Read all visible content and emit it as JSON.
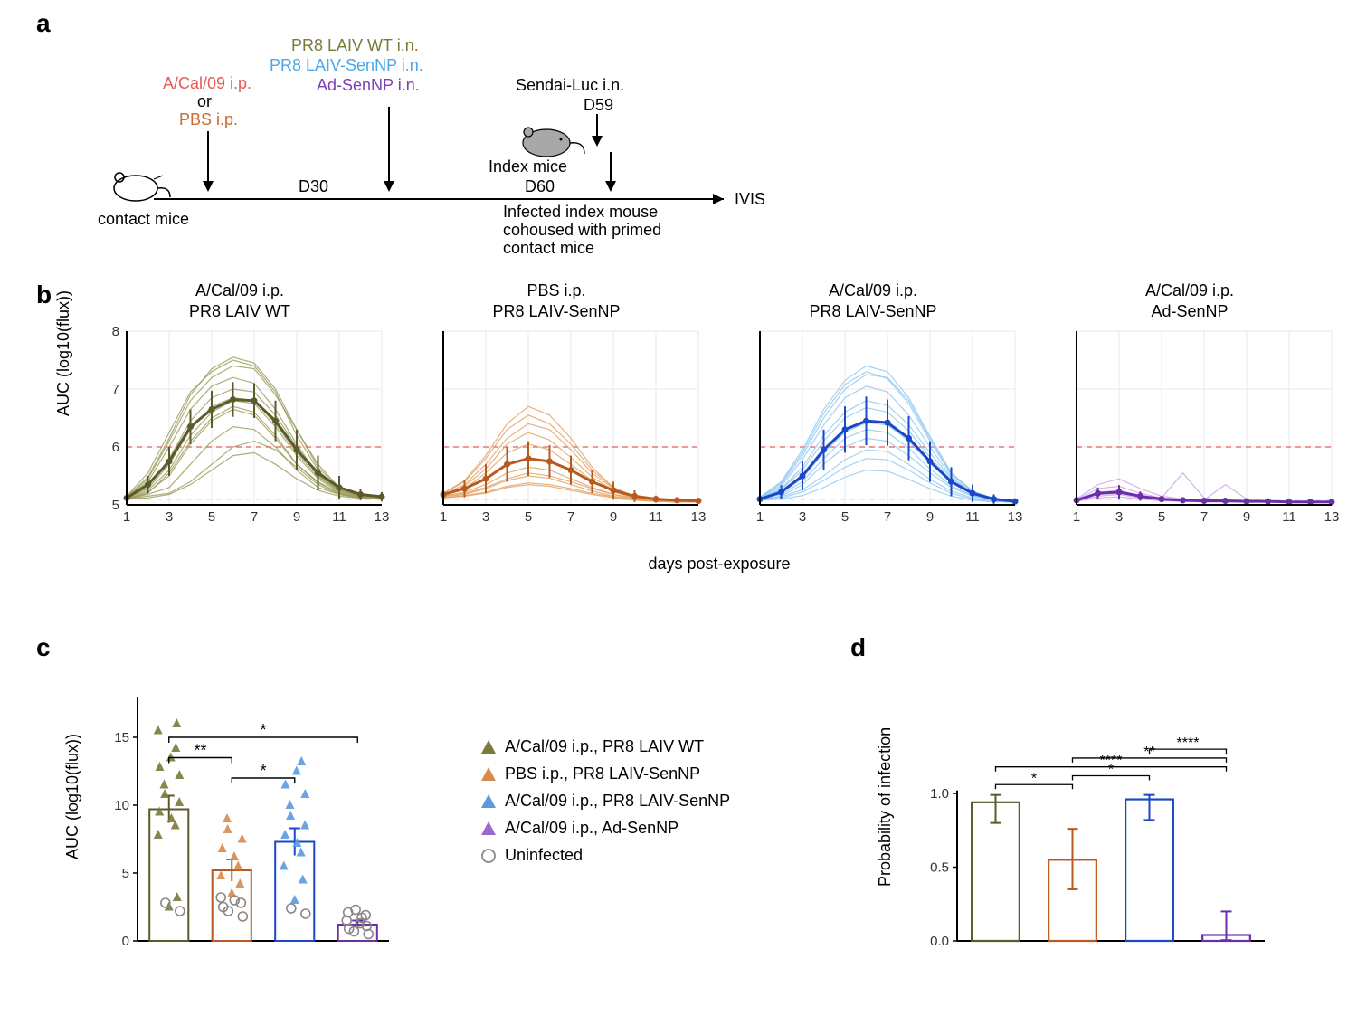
{
  "colors": {
    "olive": "#7a7a3a",
    "orange": "#c96c2e",
    "red_pink": "#e85a5a",
    "light_blue": "#4aa8e8",
    "mid_blue": "#2a5fd6",
    "purple": "#7a3fb8",
    "grey_mouse": "#a8a8a8",
    "grey_open": "#999999",
    "dash_red": "#e85a5a",
    "dash_grey": "#aaaaaa",
    "grid": "#eaeaea",
    "axis": "#000000"
  },
  "panel_a": {
    "label": "a",
    "contact_mice": "contact mice",
    "acal": "A/Cal/09 i.p.",
    "or": "or",
    "pbs": "PBS i.p.",
    "d30": "D30",
    "laiv_wt": "PR8 LAIV WT i.n.",
    "laiv_sen": "PR8 LAIV-SenNP i.n.",
    "ad_sen": "Ad-SenNP i.n.",
    "sendai": "Sendai-Luc i.n.",
    "d59": "D59",
    "index_mice": "Index mice",
    "d60": "D60",
    "cohousing": "Infected index mouse\ncohoused with primed\ncontact mice",
    "ivis": "IVIS"
  },
  "panel_b": {
    "label": "b",
    "ylabel": "AUC (log10(flux))",
    "xlabel": "days post-exposure",
    "ylim": [
      5,
      8
    ],
    "yticks": [
      5,
      6,
      7,
      8
    ],
    "xlim": [
      1,
      13
    ],
    "xticks": [
      1,
      3,
      5,
      7,
      9,
      11,
      13
    ],
    "ref_lines": [
      6.0,
      5.1
    ],
    "charts": [
      {
        "title_l1": "A/Cal/09 i.p.",
        "title_l2": "PR8 LAIV WT",
        "color_thin": "#9a9a5a",
        "color_bold": "#5a5a2a",
        "mean": [
          5.12,
          5.35,
          5.75,
          6.35,
          6.65,
          6.82,
          6.8,
          6.45,
          5.95,
          5.55,
          5.3,
          5.18,
          5.14
        ],
        "err": [
          0.05,
          0.15,
          0.25,
          0.3,
          0.32,
          0.3,
          0.3,
          0.35,
          0.35,
          0.3,
          0.2,
          0.1,
          0.08
        ],
        "thin": [
          [
            5.1,
            5.2,
            5.55,
            6.1,
            6.5,
            6.7,
            6.6,
            6.2,
            5.7,
            5.4,
            5.2,
            5.12,
            5.1
          ],
          [
            5.12,
            5.45,
            6.1,
            6.8,
            7.2,
            7.4,
            7.35,
            6.9,
            6.3,
            5.7,
            5.3,
            5.18,
            5.12
          ],
          [
            5.1,
            5.25,
            5.6,
            6.2,
            6.6,
            6.8,
            6.75,
            6.35,
            5.85,
            5.45,
            5.22,
            5.12,
            5.1
          ],
          [
            5.15,
            5.55,
            6.25,
            6.95,
            7.3,
            7.5,
            7.4,
            6.95,
            6.2,
            5.6,
            5.25,
            5.14,
            5.1
          ],
          [
            5.1,
            5.18,
            5.3,
            5.7,
            6.1,
            6.35,
            6.3,
            6.0,
            5.6,
            5.3,
            5.18,
            5.12,
            5.1
          ],
          [
            5.12,
            5.3,
            5.8,
            6.45,
            6.85,
            7.0,
            6.95,
            6.55,
            6.0,
            5.5,
            5.25,
            5.14,
            5.11
          ],
          [
            5.1,
            5.15,
            5.2,
            5.4,
            5.7,
            6.0,
            6.1,
            5.95,
            5.65,
            5.35,
            5.18,
            5.12,
            5.1
          ],
          [
            5.14,
            5.48,
            6.15,
            6.9,
            7.35,
            7.55,
            7.45,
            7.0,
            6.3,
            5.65,
            5.28,
            5.16,
            5.11
          ],
          [
            5.11,
            5.28,
            5.7,
            6.3,
            6.7,
            6.85,
            6.8,
            6.4,
            5.9,
            5.48,
            5.24,
            5.13,
            5.1
          ],
          [
            5.1,
            5.22,
            5.5,
            6.05,
            6.45,
            6.65,
            6.55,
            6.15,
            5.7,
            5.38,
            5.2,
            5.12,
            5.1
          ],
          [
            5.13,
            5.4,
            6.0,
            6.65,
            7.05,
            7.2,
            7.1,
            6.65,
            6.05,
            5.52,
            5.26,
            5.15,
            5.11
          ],
          [
            5.1,
            5.12,
            5.18,
            5.35,
            5.6,
            5.85,
            5.9,
            5.7,
            5.45,
            5.25,
            5.15,
            5.11,
            5.1
          ]
        ]
      },
      {
        "title_l1": "PBS i.p.",
        "title_l2": "PR8 LAIV-SenNP",
        "color_thin": "#e0a060",
        "color_bold": "#b85a20",
        "mean": [
          5.18,
          5.28,
          5.45,
          5.7,
          5.8,
          5.75,
          5.6,
          5.4,
          5.25,
          5.15,
          5.1,
          5.08,
          5.07
        ],
        "err": [
          0.08,
          0.15,
          0.25,
          0.3,
          0.3,
          0.28,
          0.25,
          0.2,
          0.15,
          0.1,
          0.06,
          0.04,
          0.04
        ],
        "thin": [
          [
            5.15,
            5.2,
            5.3,
            5.45,
            5.55,
            5.5,
            5.4,
            5.28,
            5.18,
            5.12,
            5.08,
            5.06,
            5.05
          ],
          [
            5.2,
            5.4,
            5.8,
            6.3,
            6.55,
            6.4,
            6.05,
            5.6,
            5.3,
            5.15,
            5.08,
            5.06,
            5.05
          ],
          [
            5.12,
            5.15,
            5.2,
            5.3,
            5.35,
            5.32,
            5.25,
            5.18,
            5.12,
            5.08,
            5.06,
            5.05,
            5.05
          ],
          [
            5.18,
            5.35,
            5.7,
            6.15,
            6.4,
            6.3,
            5.95,
            5.55,
            5.28,
            5.14,
            5.08,
            5.06,
            5.05
          ],
          [
            5.15,
            5.22,
            5.35,
            5.55,
            5.65,
            5.6,
            5.45,
            5.3,
            5.18,
            5.1,
            5.07,
            5.05,
            5.05
          ],
          [
            5.2,
            5.42,
            5.85,
            6.4,
            6.7,
            6.55,
            6.15,
            5.65,
            5.3,
            5.14,
            5.08,
            5.06,
            5.05
          ],
          [
            5.12,
            5.16,
            5.22,
            5.32,
            5.38,
            5.35,
            5.28,
            5.2,
            5.14,
            5.09,
            5.06,
            5.05,
            5.05
          ],
          [
            5.16,
            5.28,
            5.55,
            5.9,
            6.05,
            5.95,
            5.7,
            5.42,
            5.22,
            5.12,
            5.07,
            5.05,
            5.05
          ],
          [
            5.14,
            5.18,
            5.28,
            5.42,
            5.5,
            5.46,
            5.35,
            5.24,
            5.15,
            5.09,
            5.06,
            5.05,
            5.05
          ],
          [
            5.18,
            5.32,
            5.62,
            6.05,
            6.25,
            6.12,
            5.82,
            5.48,
            5.25,
            5.13,
            5.07,
            5.05,
            5.05
          ]
        ]
      },
      {
        "title_l1": "A/Cal/09 i.p.",
        "title_l2": "PR8 LAIV-SenNP",
        "color_thin": "#8fc7f0",
        "color_bold": "#1a48c6",
        "mean": [
          5.1,
          5.22,
          5.5,
          5.95,
          6.3,
          6.45,
          6.42,
          6.15,
          5.75,
          5.4,
          5.2,
          5.1,
          5.06
        ],
        "err": [
          0.05,
          0.12,
          0.25,
          0.35,
          0.4,
          0.42,
          0.4,
          0.38,
          0.35,
          0.25,
          0.15,
          0.08,
          0.04
        ],
        "thin": [
          [
            5.08,
            5.15,
            5.35,
            5.7,
            6.0,
            6.15,
            6.1,
            5.85,
            5.55,
            5.3,
            5.15,
            5.08,
            5.05
          ],
          [
            5.12,
            5.35,
            5.85,
            6.5,
            7.0,
            7.25,
            7.2,
            6.8,
            6.15,
            5.55,
            5.22,
            5.1,
            5.06
          ],
          [
            5.09,
            5.18,
            5.4,
            5.8,
            6.15,
            6.3,
            6.25,
            5.98,
            5.62,
            5.33,
            5.16,
            5.08,
            5.05
          ],
          [
            5.13,
            5.4,
            5.95,
            6.65,
            7.15,
            7.4,
            7.3,
            6.85,
            6.18,
            5.55,
            5.24,
            5.11,
            5.06
          ],
          [
            5.08,
            5.12,
            5.22,
            5.42,
            5.65,
            5.8,
            5.78,
            5.6,
            5.38,
            5.2,
            5.1,
            5.06,
            5.05
          ],
          [
            5.11,
            5.28,
            5.65,
            6.2,
            6.6,
            6.8,
            6.72,
            6.38,
            5.9,
            5.45,
            5.2,
            5.09,
            5.05
          ],
          [
            5.09,
            5.14,
            5.26,
            5.5,
            5.78,
            5.95,
            5.92,
            5.7,
            5.44,
            5.24,
            5.12,
            5.07,
            5.05
          ],
          [
            5.12,
            5.32,
            5.78,
            6.38,
            6.85,
            7.05,
            6.95,
            6.55,
            6.0,
            5.48,
            5.21,
            5.1,
            5.06
          ],
          [
            5.1,
            5.2,
            5.46,
            5.9,
            6.25,
            6.42,
            6.38,
            6.1,
            5.72,
            5.38,
            5.18,
            5.08,
            5.05
          ],
          [
            5.11,
            5.26,
            5.6,
            6.1,
            6.5,
            6.68,
            6.6,
            6.28,
            5.82,
            5.42,
            5.19,
            5.09,
            5.05
          ],
          [
            5.13,
            5.38,
            5.9,
            6.58,
            7.08,
            7.3,
            7.18,
            6.75,
            6.1,
            5.52,
            5.23,
            5.1,
            5.06
          ],
          [
            5.08,
            5.1,
            5.16,
            5.3,
            5.48,
            5.6,
            5.58,
            5.44,
            5.28,
            5.15,
            5.08,
            5.05,
            5.05
          ]
        ]
      },
      {
        "title_l1": "A/Cal/09 i.p.",
        "title_l2": "Ad-SenNP",
        "color_thin": "#c9a0e8",
        "color_bold": "#6a2fa8",
        "mean": [
          5.08,
          5.2,
          5.22,
          5.15,
          5.1,
          5.08,
          5.07,
          5.07,
          5.06,
          5.06,
          5.05,
          5.05,
          5.05
        ],
        "err": [
          0.04,
          0.1,
          0.12,
          0.08,
          0.05,
          0.04,
          0.03,
          0.03,
          0.03,
          0.02,
          0.02,
          0.02,
          0.02
        ],
        "thin": [
          [
            5.06,
            5.15,
            5.18,
            5.12,
            5.08,
            5.06,
            5.05,
            5.05,
            5.05,
            5.05,
            5.05,
            5.05,
            5.05
          ],
          [
            5.1,
            5.35,
            5.45,
            5.28,
            5.15,
            5.1,
            5.08,
            5.35,
            5.1,
            5.07,
            5.06,
            5.05,
            5.05
          ],
          [
            5.07,
            5.18,
            5.2,
            5.14,
            5.09,
            5.07,
            5.06,
            5.06,
            5.05,
            5.05,
            5.05,
            5.05,
            5.05
          ],
          [
            5.08,
            5.22,
            5.25,
            5.16,
            5.1,
            5.08,
            5.06,
            5.06,
            5.06,
            5.05,
            5.05,
            5.05,
            5.05
          ],
          [
            5.09,
            5.28,
            5.32,
            5.2,
            5.12,
            5.55,
            5.12,
            5.07,
            5.06,
            5.06,
            5.05,
            5.05,
            5.05
          ],
          [
            5.06,
            5.12,
            5.14,
            5.1,
            5.07,
            5.06,
            5.05,
            5.05,
            5.05,
            5.05,
            5.05,
            5.05,
            5.05
          ]
        ]
      }
    ]
  },
  "panel_c": {
    "label": "c",
    "ylabel": "AUC (log10(flux))",
    "ylim": [
      0,
      18
    ],
    "yticks": [
      0,
      5,
      10,
      15
    ],
    "sig": [
      {
        "from": 0,
        "to": 1,
        "y": 13.5,
        "label": "**"
      },
      {
        "from": 1,
        "to": 2,
        "y": 12.0,
        "label": "*"
      },
      {
        "from": 0,
        "to": 3,
        "y": 15.0,
        "label": "*"
      }
    ],
    "bars": [
      {
        "h": 9.7,
        "err": 1.0,
        "fill": "none",
        "stroke": "#5a5a2a",
        "jitter_fill": "#7a7a3a",
        "points": [
          2.5,
          3.2,
          7.8,
          8.5,
          9.0,
          9.5,
          10.2,
          10.8,
          11.5,
          12.2,
          12.8,
          13.5,
          14.2,
          15.5,
          16.0
        ],
        "open": [
          2.2,
          2.8
        ]
      },
      {
        "h": 5.2,
        "err": 0.8,
        "fill": "none",
        "stroke": "#b85a20",
        "jitter_fill": "#d68a50",
        "points": [
          3.5,
          4.2,
          4.8,
          5.5,
          6.2,
          6.8,
          7.5,
          8.2,
          9.0
        ],
        "open": [
          1.8,
          2.2,
          2.5,
          2.8,
          3.0,
          3.2
        ]
      },
      {
        "h": 7.3,
        "err": 1.0,
        "fill": "none",
        "stroke": "#1a48c6",
        "jitter_fill": "#5a9ae0",
        "points": [
          3.0,
          4.5,
          5.5,
          6.5,
          7.2,
          7.8,
          8.5,
          9.2,
          10.0,
          10.8,
          11.5,
          12.5,
          13.2
        ],
        "open": [
          2.0,
          2.4
        ]
      },
      {
        "h": 1.2,
        "err": 0.3,
        "fill": "none",
        "stroke": "#6a2fa8",
        "jitter_fill": "#9a6ac8",
        "points": [],
        "open": [
          0.5,
          0.7,
          0.9,
          1.1,
          1.3,
          1.5,
          1.7,
          1.9,
          2.1,
          2.3
        ]
      }
    ]
  },
  "legend": {
    "items": [
      {
        "shape": "triangle",
        "fill": "#7a7a3a",
        "label": "A/Cal/09 i.p., PR8 LAIV WT"
      },
      {
        "shape": "triangle",
        "fill": "#d68a50",
        "label": "PBS i.p., PR8 LAIV-SenNP"
      },
      {
        "shape": "triangle",
        "fill": "#5a9ae0",
        "label": "A/Cal/09 i.p., PR8 LAIV-SenNP"
      },
      {
        "shape": "triangle",
        "fill": "#9a6ac8",
        "label": "A/Cal/09 i.p., Ad-SenNP"
      },
      {
        "shape": "circle",
        "fill": "none",
        "stroke": "#888",
        "label": "Uninfected"
      }
    ]
  },
  "panel_d": {
    "label": "d",
    "ylabel": "Probability of infection",
    "ylim": [
      0,
      1.1
    ],
    "yticks": [
      0.0,
      0.5,
      1.0
    ],
    "sig": [
      {
        "from": 0,
        "to": 1,
        "y": 1.06,
        "label": "*"
      },
      {
        "from": 1,
        "to": 2,
        "y": 1.12,
        "label": "*"
      },
      {
        "from": 0,
        "to": 3,
        "y": 1.18,
        "label": "****"
      },
      {
        "from": 1,
        "to": 3,
        "y": 1.24,
        "label": "**"
      },
      {
        "from": 2,
        "to": 3,
        "y": 1.3,
        "label": "****"
      }
    ],
    "bars": [
      {
        "h": 0.94,
        "elo": 0.8,
        "ehi": 0.99,
        "stroke": "#5a5a2a"
      },
      {
        "h": 0.55,
        "elo": 0.35,
        "ehi": 0.76,
        "stroke": "#b85a20"
      },
      {
        "h": 0.96,
        "elo": 0.82,
        "ehi": 0.99,
        "stroke": "#1a48c6"
      },
      {
        "h": 0.04,
        "elo": 0.005,
        "ehi": 0.2,
        "stroke": "#6a2fa8"
      }
    ]
  }
}
